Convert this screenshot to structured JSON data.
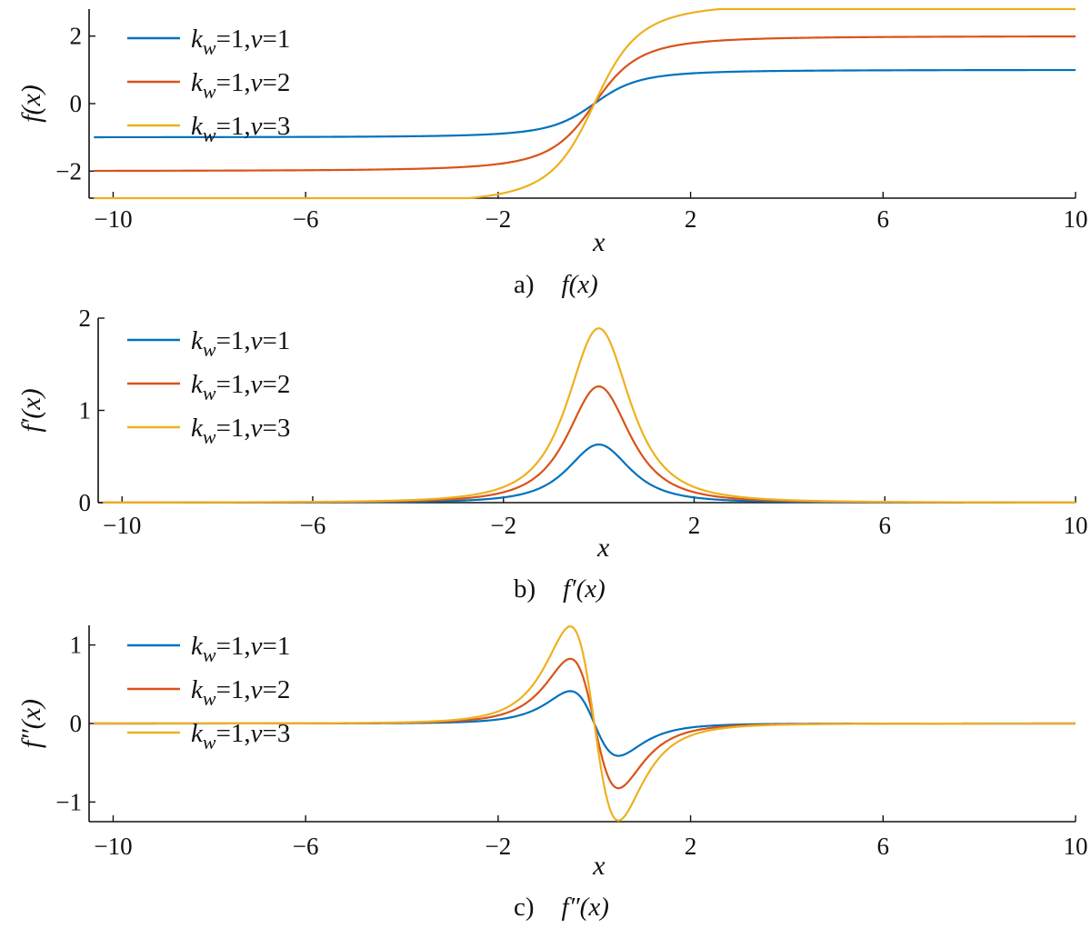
{
  "chart_data": [
    {
      "type": "line",
      "panel": "a",
      "caption_prefix": "a)",
      "caption_func": "f(x)",
      "xlabel": "x",
      "ylabel": "f(x)",
      "xlim": [
        -10.5,
        10
      ],
      "ylim": [
        -2.8,
        2.8
      ],
      "xticks": [
        -10,
        -6,
        -2,
        2,
        6,
        10
      ],
      "yticks": [
        -2,
        0,
        2
      ],
      "ytick_labels": [
        "−2",
        "0",
        "2"
      ],
      "xtick_labels": [
        "−10",
        "−6",
        "−2",
        "2",
        "6",
        "10"
      ],
      "legend_position": "top-left",
      "series": [
        {
          "name": "k_w=1, v=1",
          "k": 1,
          "v": 1,
          "color": "#0072BD",
          "func": "f"
        },
        {
          "name": "k_w=1, v=2",
          "k": 1,
          "v": 2,
          "color": "#D95319",
          "func": "f"
        },
        {
          "name": "k_w=1, v=3",
          "k": 1,
          "v": 3,
          "color": "#EDB120",
          "func": "f"
        }
      ]
    },
    {
      "type": "line",
      "panel": "b",
      "caption_prefix": "b)",
      "caption_func": "f′(x)",
      "xlabel": "x",
      "ylabel": "f′(x)",
      "xlim": [
        -10.5,
        10
      ],
      "ylim": [
        0,
        2
      ],
      "xticks": [
        -10,
        -6,
        -2,
        2,
        6,
        10
      ],
      "yticks": [
        0,
        1,
        2
      ],
      "ytick_labels": [
        "0",
        "1",
        "2"
      ],
      "xtick_labels": [
        "−10",
        "−6",
        "−2",
        "2",
        "6",
        "10"
      ],
      "legend_position": "top-left",
      "series": [
        {
          "name": "k_w=1, v=1",
          "k": 1,
          "v": 1,
          "color": "#0072BD",
          "func": "f1"
        },
        {
          "name": "k_w=1, v=2",
          "k": 1,
          "v": 2,
          "color": "#D95319",
          "func": "f1"
        },
        {
          "name": "k_w=1, v=3",
          "k": 1,
          "v": 3,
          "color": "#EDB120",
          "func": "f1"
        }
      ]
    },
    {
      "type": "line",
      "panel": "c",
      "caption_prefix": "c)",
      "caption_func": "f″(x)",
      "xlabel": "x",
      "ylabel": "f″(x)",
      "xlim": [
        -10.5,
        10
      ],
      "ylim": [
        -1.25,
        1.25
      ],
      "xticks": [
        -10,
        -6,
        -2,
        2,
        6,
        10
      ],
      "yticks": [
        -1,
        0,
        1
      ],
      "ytick_labels": [
        "−1",
        "0",
        "1"
      ],
      "xtick_labels": [
        "−10",
        "−6",
        "−2",
        "2",
        "6",
        "10"
      ],
      "legend_position": "top-left",
      "series": [
        {
          "name": "k_w=1, v=1",
          "k": 1,
          "v": 1,
          "color": "#0072BD",
          "func": "f2"
        },
        {
          "name": "k_w=1, v=2",
          "k": 1,
          "v": 2,
          "color": "#D95319",
          "func": "f2"
        },
        {
          "name": "k_w=1, v=3",
          "k": 1,
          "v": 3,
          "color": "#EDB120",
          "func": "f2"
        }
      ]
    }
  ]
}
